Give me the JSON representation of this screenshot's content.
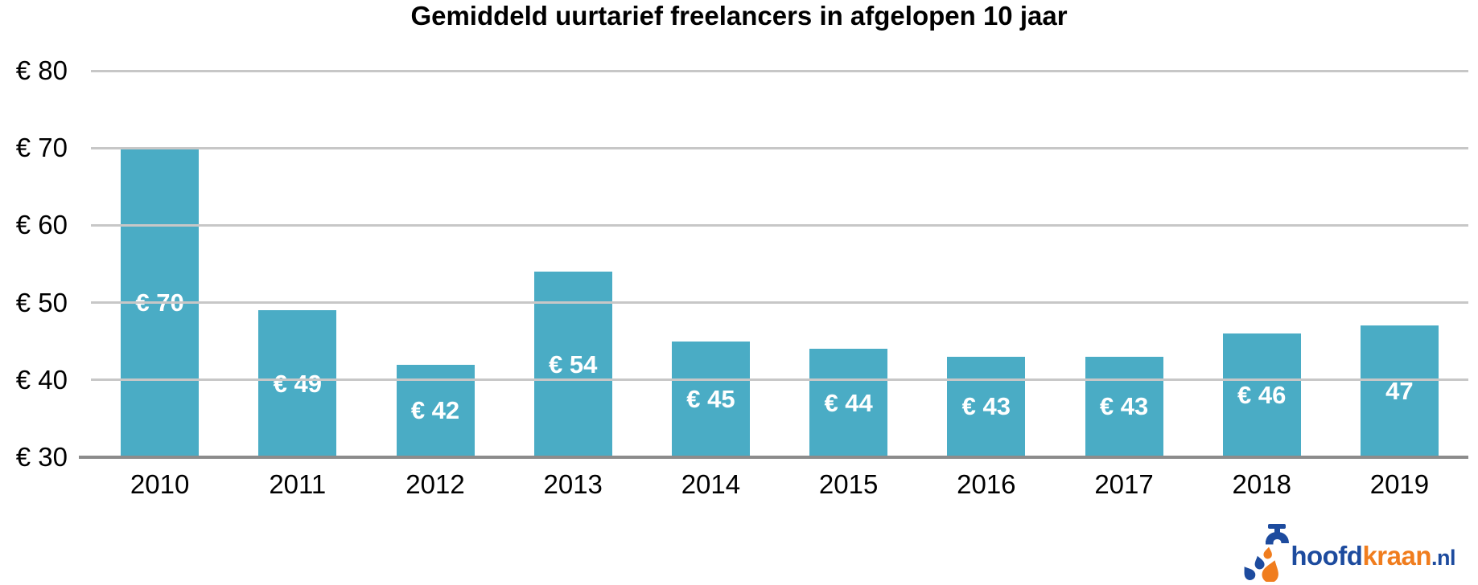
{
  "chart_data": {
    "type": "bar",
    "title": "Gemiddeld uurtarief freelancers in afgelopen 10 jaar",
    "categories": [
      "2010",
      "2011",
      "2012",
      "2013",
      "2014",
      "2015",
      "2016",
      "2017",
      "2018",
      "2019"
    ],
    "values": [
      70,
      49,
      42,
      54,
      45,
      44,
      43,
      43,
      46,
      47
    ],
    "bar_labels": [
      "€ 70",
      "€ 49",
      "€ 42",
      "€ 54",
      "€ 45",
      "€ 44",
      "€ 43",
      "€ 43",
      "€ 46",
      "47"
    ],
    "xlabel": "",
    "ylabel": "",
    "ylim": [
      30,
      80
    ],
    "y_tick_values": [
      80,
      70,
      60,
      50,
      40,
      30
    ],
    "y_tick_labels": [
      "€ 80",
      "€ 70",
      "€ 60",
      "€ 50",
      "€ 40",
      "€ 30"
    ],
    "grid": "horizontal",
    "legend": "none",
    "colors": {
      "bar": "#4aacc5",
      "bar_label": "#ffffff",
      "gridline": "#c7c7c7",
      "axis_line": "#8c8c8c",
      "text": "#000000"
    }
  },
  "logo": {
    "text_part1": "hoofd",
    "text_part2": "kraan",
    "text_part3": ".nl",
    "color_blue": "#1d4b9e",
    "color_orange": "#f07d1e"
  }
}
